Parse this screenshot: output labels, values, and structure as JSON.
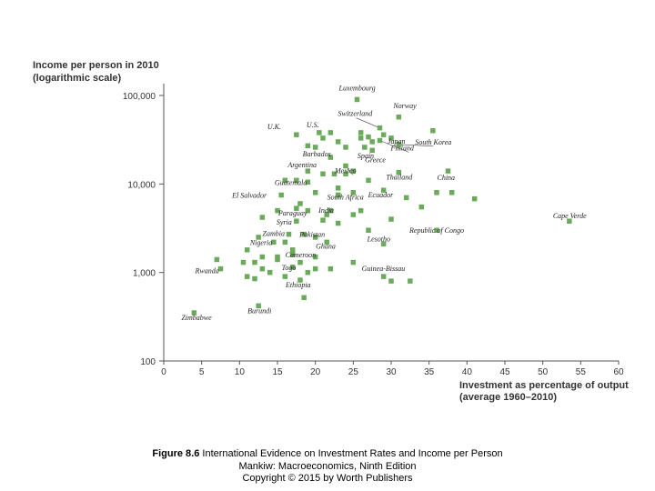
{
  "chart_data": {
    "type": "scatter",
    "y_title": [
      "Income per person in 2010",
      "(logarithmic scale)"
    ],
    "x_title": [
      "Investment as percentage of output",
      "(average 1960–2010)"
    ],
    "y_scale": "log",
    "ylim": [
      100,
      100000
    ],
    "xlim": [
      0,
      60
    ],
    "y_ticks": [
      {
        "value": 100,
        "label": "100"
      },
      {
        "value": 1000,
        "label": "1,000"
      },
      {
        "value": 10000,
        "label": "10,000"
      },
      {
        "value": 100000,
        "label": "100,000"
      }
    ],
    "x_ticks": [
      0,
      5,
      10,
      15,
      20,
      25,
      30,
      35,
      40,
      45,
      50,
      55,
      60
    ],
    "marker_color": "#6aaa5a",
    "labeled_points": [
      {
        "name": "Luxembourg",
        "x": 25.5,
        "y": 90000
      },
      {
        "name": "Norway",
        "x": 31.0,
        "y": 57000
      },
      {
        "name": "Switzerland",
        "x": 28.5,
        "y": 43000
      },
      {
        "name": "U.S.",
        "x": 20.5,
        "y": 38000
      },
      {
        "name": "U.K.",
        "x": 17.5,
        "y": 36000
      },
      {
        "name": "Japan",
        "x": 30.0,
        "y": 33000
      },
      {
        "name": "South Korea",
        "x": 31.0,
        "y": 28000
      },
      {
        "name": "Barbados",
        "x": 20.0,
        "y": 26000
      },
      {
        "name": "Finland",
        "x": 28.5,
        "y": 31000
      },
      {
        "name": "Spain",
        "x": 26.5,
        "y": 26000
      },
      {
        "name": "Greece",
        "x": 27.5,
        "y": 24000
      },
      {
        "name": "Argentina",
        "x": 19.0,
        "y": 14000
      },
      {
        "name": "Mexico",
        "x": 24.0,
        "y": 16000
      },
      {
        "name": "Thailand",
        "x": 31.0,
        "y": 13500
      },
      {
        "name": "China",
        "x": 37.5,
        "y": 14000
      },
      {
        "name": "Guatemala",
        "x": 17.5,
        "y": 11000
      },
      {
        "name": "Ecuador",
        "x": 29.0,
        "y": 8500
      },
      {
        "name": "El Salvador",
        "x": 15.5,
        "y": 7500
      },
      {
        "name": "South Africa",
        "x": 23.0,
        "y": 7500
      },
      {
        "name": "Paraguay",
        "x": 17.5,
        "y": 5300
      },
      {
        "name": "Cape Verde",
        "x": 53.5,
        "y": 3800
      },
      {
        "name": "India",
        "x": 21.5,
        "y": 4500
      },
      {
        "name": "Syria",
        "x": 17.5,
        "y": 3800
      },
      {
        "name": "Republic of Congo",
        "x": 36.0,
        "y": 3000
      },
      {
        "name": "Zambia",
        "x": 16.5,
        "y": 2700
      },
      {
        "name": "Pakistan",
        "x": 18.5,
        "y": 2700
      },
      {
        "name": "Nigeria",
        "x": 14.5,
        "y": 2200
      },
      {
        "name": "Ghana",
        "x": 21.5,
        "y": 2200
      },
      {
        "name": "Lesotho",
        "x": 29.0,
        "y": 2100
      },
      {
        "name": "Cameroon",
        "x": 17.0,
        "y": 1600
      },
      {
        "name": "Togo",
        "x": 17.0,
        "y": 1150
      },
      {
        "name": "Guinea-Bissau",
        "x": 29.0,
        "y": 900
      },
      {
        "name": "Rwanda",
        "x": 7.5,
        "y": 1100
      },
      {
        "name": "Ethiopia",
        "x": 18.0,
        "y": 820
      },
      {
        "name": "Burundi",
        "x": 12.5,
        "y": 420
      },
      {
        "name": "Zimbabwe",
        "x": 4.0,
        "y": 350
      }
    ],
    "other_points": [
      [
        26,
        38000
      ],
      [
        27,
        34000
      ],
      [
        29,
        36000
      ],
      [
        21,
        33000
      ],
      [
        22,
        38000
      ],
      [
        19,
        27000
      ],
      [
        24,
        26000
      ],
      [
        26,
        33000
      ],
      [
        23,
        30000
      ],
      [
        35.5,
        40000
      ],
      [
        27.5,
        30000
      ],
      [
        22,
        20000
      ],
      [
        21,
        13000
      ],
      [
        22.5,
        13000
      ],
      [
        24,
        13000
      ],
      [
        23,
        9000
      ],
      [
        25,
        14000
      ],
      [
        16,
        11000
      ],
      [
        19,
        10500
      ],
      [
        20,
        8000
      ],
      [
        23,
        7500
      ],
      [
        25,
        8000
      ],
      [
        27,
        11000
      ],
      [
        32,
        7000
      ],
      [
        34,
        5500
      ],
      [
        36,
        8000
      ],
      [
        38,
        8000
      ],
      [
        41,
        6800
      ],
      [
        15,
        5000
      ],
      [
        18,
        6000
      ],
      [
        19,
        5000
      ],
      [
        22,
        5000
      ],
      [
        25,
        4500
      ],
      [
        30,
        4000
      ],
      [
        13,
        4200
      ],
      [
        21,
        3900
      ],
      [
        23,
        3600
      ],
      [
        26,
        5000
      ],
      [
        12.5,
        2500
      ],
      [
        16,
        2200
      ],
      [
        20,
        2500
      ],
      [
        27,
        3000
      ],
      [
        11,
        1800
      ],
      [
        13,
        1500
      ],
      [
        15,
        1400
      ],
      [
        18,
        1300
      ],
      [
        20,
        1500
      ],
      [
        12,
        1300
      ],
      [
        14,
        1000
      ],
      [
        16,
        900
      ],
      [
        19,
        1000
      ],
      [
        22,
        1100
      ],
      [
        11,
        900
      ],
      [
        13,
        1100
      ],
      [
        25,
        1300
      ],
      [
        30,
        800
      ],
      [
        7,
        1400
      ],
      [
        10.5,
        1300
      ],
      [
        12,
        850
      ],
      [
        18.5,
        520
      ],
      [
        15,
        1500
      ],
      [
        17,
        1800
      ],
      [
        32.5,
        800
      ],
      [
        20,
        1100
      ]
    ]
  },
  "caption": {
    "figure_label": "Figure 8.6",
    "figure_title": "International Evidence on Investment Rates and Income per Person",
    "book": "Mankiw: Macroeconomics, Ninth Edition",
    "copyright": "Copyright © 2015 by Worth Publishers"
  }
}
